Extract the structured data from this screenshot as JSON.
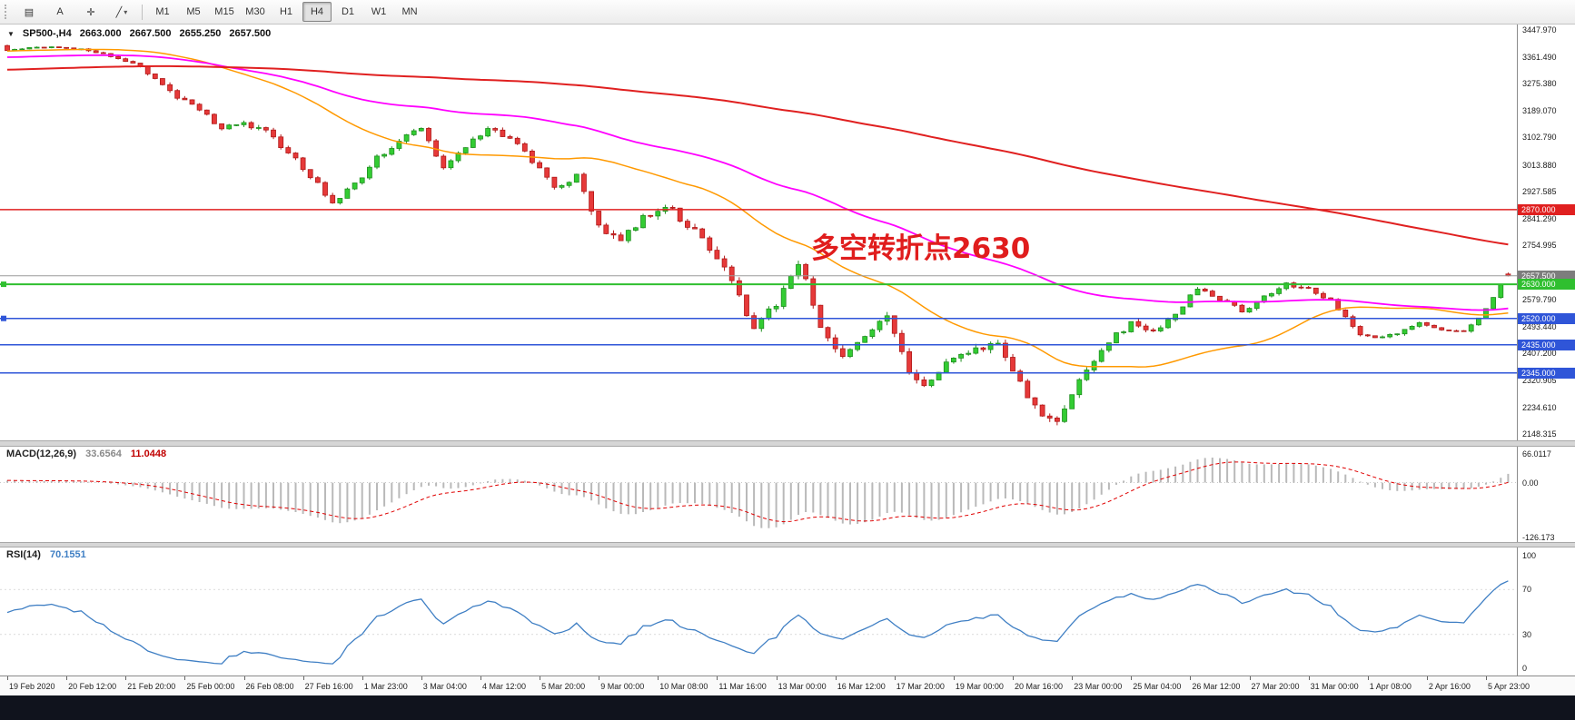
{
  "toolbar": {
    "left_tools": [
      {
        "name": "chart-templates",
        "glyph": "▤"
      },
      {
        "name": "text-tool",
        "glyph": "A"
      },
      {
        "name": "crosshair-tool",
        "glyph": "✛"
      },
      {
        "name": "line-tools",
        "glyph": "╱",
        "dropdown": true
      }
    ],
    "timeframes": [
      "M1",
      "M5",
      "M15",
      "M30",
      "H1",
      "H4",
      "D1",
      "W1",
      "MN"
    ],
    "active_timeframe": "H4"
  },
  "chart": {
    "title": "SP500-,H4",
    "title_arrow": "▼",
    "ohlc": {
      "open": "2663.000",
      "high": "2667.500",
      "low": "2655.250",
      "close": "2657.500"
    },
    "annotation": {
      "text": "多空转折点2630",
      "color": "#e01d1d"
    },
    "candle_colors": {
      "up": {
        "fill": "#33cc33",
        "stroke": "#1f8f1f"
      },
      "down": {
        "fill": "#e63939",
        "stroke": "#b01818"
      }
    },
    "axis_labels": [
      "3447.970",
      "3361.490",
      "3275.380",
      "3189.070",
      "3102.790",
      "3013.880",
      "2927.585",
      "2841.290",
      "2754.995",
      "2579.790",
      "2493.440",
      "2407.200",
      "2320.905",
      "2234.610",
      "2148.315"
    ],
    "levels": [
      {
        "name": "resistance-2870",
        "label": "2870.000",
        "price": 2870.0,
        "color": "#e02020",
        "line_width": 1.5,
        "tag_bg": "#e02020",
        "marker": false
      },
      {
        "name": "bid-price",
        "label": "2657.500",
        "price": 2657.5,
        "color": "#9a9a9a",
        "line_width": 1,
        "tag_bg": "#7d7d7d",
        "marker": false
      },
      {
        "name": "pivot-2630",
        "label": "2630.000",
        "price": 2630.0,
        "color": "#2fbf2f",
        "line_width": 2,
        "tag_bg": "#2fbf2f",
        "marker": true
      },
      {
        "name": "support-2520",
        "label": "2520.000",
        "price": 2520.0,
        "color": "#2f55d8",
        "line_width": 1.5,
        "tag_bg": "#2f55d8",
        "marker": true
      },
      {
        "name": "support-2435",
        "label": "2435.000",
        "price": 2435.0,
        "color": "#2f55d8",
        "line_width": 1.5,
        "tag_bg": "#2f55d8",
        "marker": false
      },
      {
        "name": "support-2345",
        "label": "2345.000",
        "price": 2345.0,
        "color": "#2f55d8",
        "line_width": 1.5,
        "tag_bg": "#2f55d8",
        "marker": false
      }
    ]
  },
  "macd": {
    "label": "MACD(12,26,9)",
    "value_main": "33.6564",
    "value_signal": "11.0448",
    "axis": [
      "66.0117",
      "0.00",
      "-126.173"
    ],
    "histogram_color": "#b9b9b9",
    "signal_color": "#e00000"
  },
  "rsi": {
    "label": "RSI(14)",
    "value": "70.1551",
    "axis": [
      "100",
      "70",
      "30",
      "0"
    ],
    "line_color": "#3f7fc4",
    "level_lines": [
      70,
      30
    ]
  },
  "time_axis": [
    "19 Feb 2020",
    "20 Feb 12:00",
    "21 Feb 20:00",
    "25 Feb 00:00",
    "26 Feb 08:00",
    "27 Feb 16:00",
    "1 Mar 23:00",
    "3 Mar 04:00",
    "4 Mar 12:00",
    "5 Mar 20:00",
    "9 Mar 00:00",
    "10 Mar 08:00",
    "11 Mar 16:00",
    "13 Mar 00:00",
    "16 Mar 12:00",
    "17 Mar 20:00",
    "19 Mar 00:00",
    "20 Mar 16:00",
    "23 Mar 00:00",
    "25 Mar 04:00",
    "26 Mar 12:00",
    "27 Mar 20:00",
    "31 Mar 00:00",
    "1 Apr 08:00",
    "2 Apr 16:00",
    "5 Apr 23:00"
  ],
  "chart_data": {
    "type": "candlestick",
    "symbol": "SP500-",
    "timeframe": "H4",
    "render_seed": 7,
    "candles_count": 204,
    "last_ohlc": {
      "open": 2663.0,
      "high": 2667.5,
      "low": 2655.25,
      "close": 2657.5
    },
    "price_axis": {
      "min": 2148.315,
      "max": 3447.97
    },
    "visible_range": {
      "start": "19 Feb 2020",
      "end": "6 Apr 2020"
    },
    "price_path_anchors": [
      [
        0,
        3383
      ],
      [
        3,
        3390
      ],
      [
        6,
        3392
      ],
      [
        9,
        3388
      ],
      [
        12,
        3378
      ],
      [
        15,
        3355
      ],
      [
        17,
        3338
      ],
      [
        20,
        3298
      ],
      [
        23,
        3230
      ],
      [
        26,
        3190
      ],
      [
        29,
        3130
      ],
      [
        32,
        3145
      ],
      [
        35,
        3118
      ],
      [
        38,
        3058
      ],
      [
        41,
        2980
      ],
      [
        44,
        2890
      ],
      [
        47,
        2952
      ],
      [
        50,
        3035
      ],
      [
        53,
        3092
      ],
      [
        56,
        3135
      ],
      [
        59,
        3005
      ],
      [
        62,
        3075
      ],
      [
        65,
        3128
      ],
      [
        68,
        3105
      ],
      [
        71,
        3025
      ],
      [
        74,
        2945
      ],
      [
        77,
        2975
      ],
      [
        80,
        2820
      ],
      [
        83,
        2772
      ],
      [
        86,
        2845
      ],
      [
        89,
        2885
      ],
      [
        92,
        2825
      ],
      [
        95,
        2740
      ],
      [
        98,
        2650
      ],
      [
        101,
        2485
      ],
      [
        104,
        2570
      ],
      [
        107,
        2705
      ],
      [
        110,
        2500
      ],
      [
        113,
        2390
      ],
      [
        116,
        2455
      ],
      [
        119,
        2525
      ],
      [
        122,
        2350
      ],
      [
        124,
        2300
      ],
      [
        127,
        2380
      ],
      [
        131,
        2420
      ],
      [
        134,
        2440
      ],
      [
        137,
        2310
      ],
      [
        140,
        2205
      ],
      [
        142,
        2185
      ],
      [
        143,
        2240
      ],
      [
        146,
        2350
      ],
      [
        149,
        2445
      ],
      [
        152,
        2505
      ],
      [
        155,
        2480
      ],
      [
        158,
        2525
      ],
      [
        161,
        2620
      ],
      [
        164,
        2585
      ],
      [
        167,
        2545
      ],
      [
        170,
        2590
      ],
      [
        173,
        2628
      ],
      [
        176,
        2615
      ],
      [
        179,
        2580
      ],
      [
        181,
        2525
      ],
      [
        183,
        2465
      ],
      [
        185,
        2455
      ],
      [
        188,
        2470
      ],
      [
        191,
        2505
      ],
      [
        194,
        2480
      ],
      [
        197,
        2475
      ],
      [
        199,
        2520
      ],
      [
        201,
        2590
      ],
      [
        203,
        2657.5
      ]
    ],
    "volatility_anchors": [
      [
        0,
        6
      ],
      [
        17,
        9
      ],
      [
        20,
        16
      ],
      [
        47,
        18
      ],
      [
        50,
        15
      ],
      [
        77,
        18
      ],
      [
        78,
        26
      ],
      [
        137,
        26
      ],
      [
        140,
        30
      ],
      [
        143,
        26
      ],
      [
        146,
        20
      ],
      [
        167,
        15
      ],
      [
        185,
        13
      ],
      [
        203,
        9
      ]
    ],
    "moving_averages": [
      {
        "name": "fast",
        "period": 34,
        "method": "sma",
        "color": "#ff9900",
        "width": 1.5
      },
      {
        "name": "medium",
        "period": 89,
        "method": "ema",
        "color": "#ff00ff",
        "width": 1.8
      },
      {
        "name": "slow",
        "period": 200,
        "method": "sma",
        "color": "#e02020",
        "width": 2
      }
    ],
    "horizontal_levels": [
      2870.0,
      2630.0,
      2520.0,
      2435.0,
      2345.0
    ],
    "indicators": [
      {
        "type": "macd",
        "params": [
          12,
          26,
          9
        ],
        "last_values": [
          33.6564,
          11.0448
        ],
        "range": [
          -126.173,
          66.0117
        ]
      },
      {
        "type": "rsi",
        "params": [
          14
        ],
        "last_value": 70.1551,
        "range": [
          0,
          100
        ]
      }
    ]
  }
}
